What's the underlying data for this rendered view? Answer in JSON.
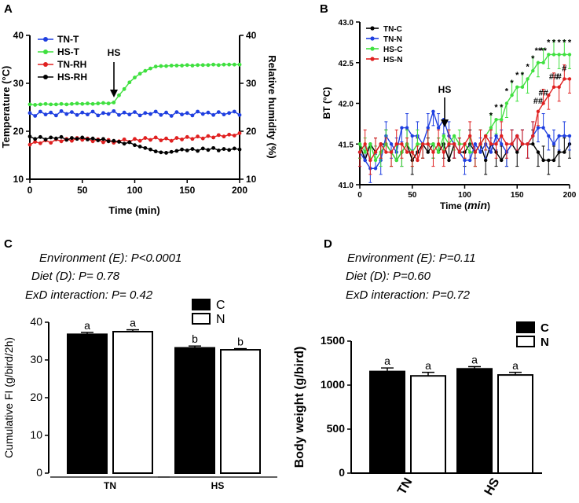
{
  "chart_data": [
    {
      "panel": "A",
      "type": "line",
      "xlabel": "Time (min)",
      "ylabel": "Temperature (°C)",
      "y2label": "Relative humidity (%)",
      "xlim": [
        0,
        200
      ],
      "ylim": [
        10,
        40
      ],
      "y2lim": [
        10,
        40
      ],
      "xticks": [
        "0",
        "50",
        "100",
        "150",
        "200"
      ],
      "yticks": [
        "10",
        "20",
        "30",
        "40"
      ],
      "y2ticks": [
        "10",
        "20",
        "30",
        "40"
      ],
      "annotation": "HS",
      "annotation_x": 80,
      "series": [
        {
          "name": "TN-T",
          "color": "#1f3fe0",
          "x": [
            0,
            5,
            10,
            15,
            20,
            25,
            30,
            35,
            40,
            45,
            50,
            55,
            60,
            65,
            70,
            75,
            80,
            85,
            90,
            95,
            100,
            105,
            110,
            115,
            120,
            125,
            130,
            135,
            140,
            145,
            150,
            155,
            160,
            165,
            170,
            175,
            180,
            185,
            190,
            195,
            200
          ],
          "values": [
            23.8,
            23.2,
            24.1,
            23.5,
            23.9,
            23.3,
            24.2,
            23.6,
            24.0,
            23.4,
            23.9,
            23.5,
            24.1,
            23.3,
            23.8,
            23.6,
            24.2,
            23.4,
            23.9,
            23.5,
            24.0,
            23.3,
            23.8,
            23.6,
            24.1,
            23.4,
            23.9,
            23.2,
            24.0,
            23.5,
            23.8,
            23.3,
            24.1,
            23.6,
            23.9,
            23.4,
            24.0,
            23.5,
            23.8,
            24.1,
            23.4
          ]
        },
        {
          "name": "HS-T",
          "color": "#3fe03f",
          "x": [
            0,
            5,
            10,
            15,
            20,
            25,
            30,
            35,
            40,
            45,
            50,
            55,
            60,
            65,
            70,
            75,
            80,
            85,
            90,
            95,
            100,
            105,
            110,
            115,
            120,
            125,
            130,
            135,
            140,
            145,
            150,
            155,
            160,
            165,
            170,
            175,
            180,
            185,
            190,
            195,
            200
          ],
          "values": [
            25.6,
            25.5,
            25.6,
            25.7,
            25.6,
            25.6,
            25.7,
            25.6,
            25.7,
            25.8,
            25.7,
            25.8,
            25.7,
            25.8,
            25.9,
            25.8,
            26.0,
            27.5,
            28.8,
            30.2,
            31.2,
            32.0,
            32.6,
            33.1,
            33.5,
            33.6,
            33.6,
            33.7,
            33.7,
            33.7,
            33.8,
            33.7,
            33.8,
            33.8,
            33.8,
            33.9,
            33.8,
            33.9,
            33.9,
            33.9,
            33.9
          ]
        },
        {
          "name": "TN-RH",
          "color": "#e02020",
          "x": [
            0,
            5,
            10,
            15,
            20,
            25,
            30,
            35,
            40,
            45,
            50,
            55,
            60,
            65,
            70,
            75,
            80,
            85,
            90,
            95,
            100,
            105,
            110,
            115,
            120,
            125,
            130,
            135,
            140,
            145,
            150,
            155,
            160,
            165,
            170,
            175,
            180,
            185,
            190,
            195,
            200
          ],
          "values": [
            17.2,
            17.8,
            17.5,
            18.1,
            17.6,
            18.3,
            17.9,
            18.4,
            18.0,
            18.6,
            18.2,
            18.5,
            17.9,
            18.3,
            17.7,
            18.2,
            17.6,
            17.9,
            18.3,
            17.8,
            18.4,
            18.0,
            18.6,
            18.2,
            18.7,
            18.1,
            18.5,
            18.0,
            18.6,
            18.3,
            18.8,
            18.4,
            18.9,
            18.5,
            19.0,
            18.7,
            19.2,
            18.9,
            19.3,
            19.1,
            19.6
          ]
        },
        {
          "name": "HS-RH",
          "color": "#000000",
          "x": [
            0,
            5,
            10,
            15,
            20,
            25,
            30,
            35,
            40,
            45,
            50,
            55,
            60,
            65,
            70,
            75,
            80,
            85,
            90,
            95,
            100,
            105,
            110,
            115,
            120,
            125,
            130,
            135,
            140,
            145,
            150,
            155,
            160,
            165,
            170,
            175,
            180,
            185,
            190,
            195,
            200
          ],
          "values": [
            18.9,
            18.4,
            18.8,
            18.3,
            18.7,
            18.5,
            18.8,
            18.2,
            18.6,
            18.4,
            18.7,
            18.3,
            18.5,
            18.1,
            18.4,
            17.9,
            18.0,
            17.8,
            17.4,
            17.7,
            17.1,
            16.8,
            16.5,
            16.2,
            15.8,
            15.6,
            15.5,
            15.7,
            15.9,
            16.2,
            16.0,
            16.3,
            15.9,
            16.4,
            16.1,
            16.5,
            16.0,
            16.3,
            16.1,
            16.4,
            16.2
          ]
        }
      ]
    },
    {
      "panel": "B",
      "type": "line",
      "xlabel": "Time (min)",
      "xlabel_main": "Time (",
      "xlabel_unit": "min",
      "xlabel_close": ")",
      "ylabel": "BT (°C)",
      "xlim": [
        0,
        200
      ],
      "ylim": [
        41.0,
        43.0
      ],
      "xticks": [
        "0",
        "50",
        "100",
        "150",
        "200"
      ],
      "yticks": [
        "41.0",
        "41.5",
        "42.0",
        "42.5",
        "43.0"
      ],
      "annotation": "HS",
      "annotation_x": 82,
      "series": [
        {
          "name": "TN-C",
          "color": "#000000",
          "x": [
            0,
            5,
            10,
            15,
            20,
            25,
            30,
            35,
            40,
            45,
            50,
            55,
            60,
            65,
            70,
            75,
            80,
            85,
            90,
            95,
            100,
            105,
            110,
            115,
            120,
            125,
            130,
            135,
            140,
            145,
            150,
            155,
            160,
            165,
            170,
            175,
            180,
            185,
            190,
            195,
            200
          ],
          "values": [
            41.5,
            41.3,
            41.5,
            41.4,
            41.5,
            41.5,
            41.4,
            41.3,
            41.4,
            41.5,
            41.3,
            41.4,
            41.5,
            41.4,
            41.5,
            41.4,
            41.5,
            41.3,
            41.5,
            41.4,
            41.4,
            41.5,
            41.4,
            41.5,
            41.3,
            41.5,
            41.4,
            41.3,
            41.4,
            41.5,
            41.4,
            41.5,
            41.5,
            41.5,
            41.4,
            41.3,
            41.3,
            41.3,
            41.4,
            41.4,
            41.5
          ]
        },
        {
          "name": "TN-N",
          "color": "#1f3fe0",
          "x": [
            0,
            5,
            10,
            15,
            20,
            25,
            30,
            35,
            40,
            45,
            50,
            55,
            60,
            65,
            70,
            75,
            80,
            85,
            90,
            95,
            100,
            105,
            110,
            115,
            120,
            125,
            130,
            135,
            140,
            145,
            150,
            155,
            160,
            165,
            170,
            175,
            180,
            185,
            190,
            195,
            200
          ],
          "values": [
            41.4,
            41.3,
            41.2,
            41.2,
            41.3,
            41.6,
            41.5,
            41.4,
            41.7,
            41.7,
            41.6,
            41.6,
            41.5,
            41.7,
            41.9,
            41.7,
            41.8,
            41.6,
            41.5,
            41.4,
            41.3,
            41.3,
            41.5,
            41.4,
            41.5,
            41.4,
            41.6,
            41.5,
            41.4,
            41.5,
            41.6,
            41.5,
            41.5,
            41.6,
            41.7,
            41.7,
            41.6,
            41.5,
            41.6,
            41.6,
            41.6
          ]
        },
        {
          "name": "HS-C",
          "color": "#3fe03f",
          "x": [
            0,
            5,
            10,
            15,
            20,
            25,
            30,
            35,
            40,
            45,
            50,
            55,
            60,
            65,
            70,
            75,
            80,
            85,
            90,
            95,
            100,
            105,
            110,
            115,
            120,
            125,
            130,
            135,
            140,
            145,
            150,
            155,
            160,
            165,
            170,
            175,
            180,
            185,
            190,
            195,
            200
          ],
          "values": [
            41.5,
            41.4,
            41.5,
            41.3,
            41.4,
            41.5,
            41.4,
            41.3,
            41.4,
            41.5,
            41.4,
            41.5,
            41.5,
            41.5,
            41.5,
            41.4,
            41.6,
            41.5,
            41.6,
            41.5,
            41.5,
            41.4,
            41.4,
            41.5,
            41.6,
            41.7,
            41.8,
            41.8,
            42.0,
            42.1,
            42.2,
            42.2,
            42.3,
            42.4,
            42.5,
            42.5,
            42.6,
            42.6,
            42.6,
            42.6,
            42.6
          ]
        },
        {
          "name": "HS-N",
          "color": "#e02020",
          "x": [
            0,
            5,
            10,
            15,
            20,
            25,
            30,
            35,
            40,
            45,
            50,
            55,
            60,
            65,
            70,
            75,
            80,
            85,
            90,
            95,
            100,
            105,
            110,
            115,
            120,
            125,
            130,
            135,
            140,
            145,
            150,
            155,
            160,
            165,
            170,
            175,
            180,
            185,
            190,
            195,
            200
          ],
          "values": [
            41.4,
            41.5,
            41.3,
            41.4,
            41.5,
            41.4,
            41.4,
            41.5,
            41.5,
            41.4,
            41.4,
            41.3,
            41.5,
            41.5,
            41.4,
            41.5,
            41.4,
            41.5,
            41.5,
            41.4,
            41.5,
            41.6,
            41.4,
            41.5,
            41.6,
            41.5,
            41.5,
            41.6,
            41.5,
            41.5,
            41.6,
            41.5,
            41.5,
            41.6,
            41.9,
            42.0,
            42.1,
            42.2,
            42.2,
            42.3,
            42.3
          ]
        }
      ],
      "sig_markers": [
        {
          "x": 125,
          "text": "*"
        },
        {
          "x": 130,
          "text": "*"
        },
        {
          "x": 135,
          "text": "*"
        },
        {
          "x": 140,
          "text": "*"
        },
        {
          "x": 145,
          "text": "*"
        },
        {
          "x": 150,
          "text": "*"
        },
        {
          "x": 155,
          "text": "*"
        },
        {
          "x": 160,
          "text": "*"
        },
        {
          "x": 165,
          "text": "*"
        },
        {
          "x": 170,
          "text": "**"
        },
        {
          "x": 175,
          "text": "**"
        },
        {
          "x": 180,
          "text": "*"
        },
        {
          "x": 185,
          "text": "*"
        },
        {
          "x": 190,
          "text": "*"
        },
        {
          "x": 195,
          "text": "*"
        },
        {
          "x": 200,
          "text": "*"
        },
        {
          "x": 170,
          "text": "##"
        },
        {
          "x": 175,
          "text": "##"
        },
        {
          "x": 185,
          "text": "##"
        },
        {
          "x": 190,
          "text": "#"
        },
        {
          "x": 195,
          "text": "#"
        }
      ]
    },
    {
      "panel": "C",
      "type": "bar",
      "categories": [
        "TN",
        "HS"
      ],
      "series": [
        {
          "name": "C",
          "values": [
            36.8,
            33.2
          ],
          "errors": [
            0.5,
            0.5
          ]
        },
        {
          "name": "N",
          "values": [
            37.5,
            32.7
          ],
          "errors": [
            0.5,
            0.3
          ]
        }
      ],
      "letters": [
        [
          "a",
          "a"
        ],
        [
          "b",
          "b"
        ]
      ],
      "ylabel": "Cumulative FI (g/bird/2h)",
      "ylim": [
        0,
        40
      ],
      "yticks": [
        "0",
        "10",
        "20",
        "30",
        "40"
      ],
      "stats": [
        {
          "label": "Environment (E): P<0.0001"
        },
        {
          "label": "Diet (D): P= 0.78"
        },
        {
          "label": "ExD interaction: P= 0.42"
        }
      ]
    },
    {
      "panel": "D",
      "type": "bar",
      "categories": [
        "TN",
        "HS"
      ],
      "series": [
        {
          "name": "C",
          "values": [
            1155,
            1185
          ],
          "errors": [
            40,
            25
          ]
        },
        {
          "name": "N",
          "values": [
            1105,
            1115
          ],
          "errors": [
            40,
            30
          ]
        }
      ],
      "letters": [
        [
          "a",
          "a"
        ],
        [
          "a",
          "a"
        ]
      ],
      "ylabel": "Body weight (g/bird)",
      "ylim": [
        0,
        1500
      ],
      "yticks": [
        "0",
        "500",
        "1000",
        "1500"
      ],
      "stats": [
        {
          "label": "Environment (E): P=0.11"
        },
        {
          "label": "Diet (D): P=0.60"
        },
        {
          "label": "ExD interaction: P=0.72"
        }
      ]
    }
  ],
  "panels": {
    "a": "A",
    "b": "B",
    "c": "C",
    "d": "D"
  },
  "hs_label": "HS"
}
